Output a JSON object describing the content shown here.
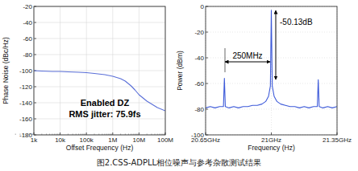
{
  "chart_data": [
    {
      "type": "line",
      "xlabel": "Offset Frequency (Hz)",
      "ylabel": "Phase Noise (dBc/Hz)",
      "log": "x",
      "grid": true,
      "xlim": [
        1000,
        100000000
      ],
      "xticks": [
        {
          "value": 1000,
          "label": "1k"
        },
        {
          "value": 10000,
          "label": "10k"
        },
        {
          "value": 100000,
          "label": "100k"
        },
        {
          "value": 1000000,
          "label": "1M"
        },
        {
          "value": 10000000,
          "label": "10M"
        },
        {
          "value": 100000000,
          "label": "100M"
        }
      ],
      "ylim": [
        -180,
        -20
      ],
      "yticks": [
        -180,
        -160,
        -140,
        -120,
        -100,
        -80,
        -60,
        -40,
        -20
      ],
      "annotations": [
        "Enabled DZ",
        "RMS jitter: 75.9fs"
      ],
      "x": [
        1000,
        2000,
        5000,
        10000,
        20000,
        50000,
        100000,
        200000,
        500000,
        1000000,
        2000000,
        3000000,
        5000000,
        7000000,
        10000000,
        20000000,
        50000000,
        100000000
      ],
      "series": [
        {
          "color": "#5a6fd8",
          "values": [
            -100,
            -100.5,
            -101,
            -101,
            -101.5,
            -102,
            -102.5,
            -103.5,
            -105,
            -107,
            -110,
            -113,
            -119,
            -124,
            -130,
            -138,
            -146,
            -150
          ]
        }
      ]
    },
    {
      "type": "line",
      "xlabel": "Frequency (Hz)",
      "ylabel": "Power (dBm)",
      "grid": true,
      "xlim": [
        20.65,
        21.35
      ],
      "xticks": [
        {
          "value": 20.65,
          "label": "20.65GHz"
        },
        {
          "value": 21.0,
          "label": "21GHz"
        },
        {
          "value": 21.35,
          "label": "21.35GHz"
        }
      ],
      "ylim": [
        -100,
        0
      ],
      "yticks": [
        -100,
        -80,
        -60,
        -40,
        -20,
        0
      ],
      "annotations": [
        "250MHz",
        "-50.13dB"
      ],
      "x": [
        20.65,
        20.675,
        20.7,
        20.725,
        20.745,
        20.75,
        20.755,
        20.775,
        20.8,
        20.825,
        20.85,
        20.875,
        20.9,
        20.925,
        20.95,
        20.97,
        20.985,
        20.995,
        21.0,
        21.005,
        21.015,
        21.03,
        21.05,
        21.075,
        21.1,
        21.125,
        21.15,
        21.175,
        21.2,
        21.225,
        21.245,
        21.25,
        21.255,
        21.275,
        21.3,
        21.325,
        21.35
      ],
      "series": [
        {
          "color": "#3d5ad9",
          "values": [
            -79,
            -78,
            -79,
            -78,
            -78,
            -56,
            -78,
            -79,
            -78,
            -79,
            -78,
            -78,
            -77,
            -77,
            -76,
            -74,
            -70,
            -62,
            -3,
            -62,
            -70,
            -74,
            -76,
            -77,
            -78,
            -78,
            -79,
            -78,
            -79,
            -78,
            -78,
            -57,
            -78,
            -79,
            -78,
            -79,
            -78
          ]
        }
      ]
    }
  ],
  "caption": "图2.CSS-ADPLL相位噪声与参考杂散测试结果"
}
